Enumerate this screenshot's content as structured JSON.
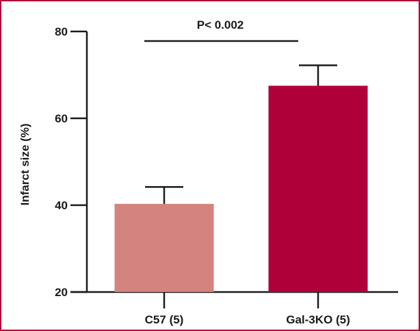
{
  "chart_data": {
    "type": "bar",
    "ylabel": "Infarct size (%)",
    "xlabel": "",
    "ylim": [
      20,
      80
    ],
    "yticks": [
      20,
      40,
      60,
      80
    ],
    "categories": [
      "C57 (5)",
      "Gal-3KO (5)"
    ],
    "values": [
      40.3,
      67.5
    ],
    "error_upper": [
      44.2,
      72.2
    ],
    "bar_colors": [
      "#d4837e",
      "#b0003a"
    ],
    "annotation": {
      "text": "P< 0.002",
      "between": [
        0,
        1
      ]
    },
    "grid": false,
    "legend": "none"
  }
}
